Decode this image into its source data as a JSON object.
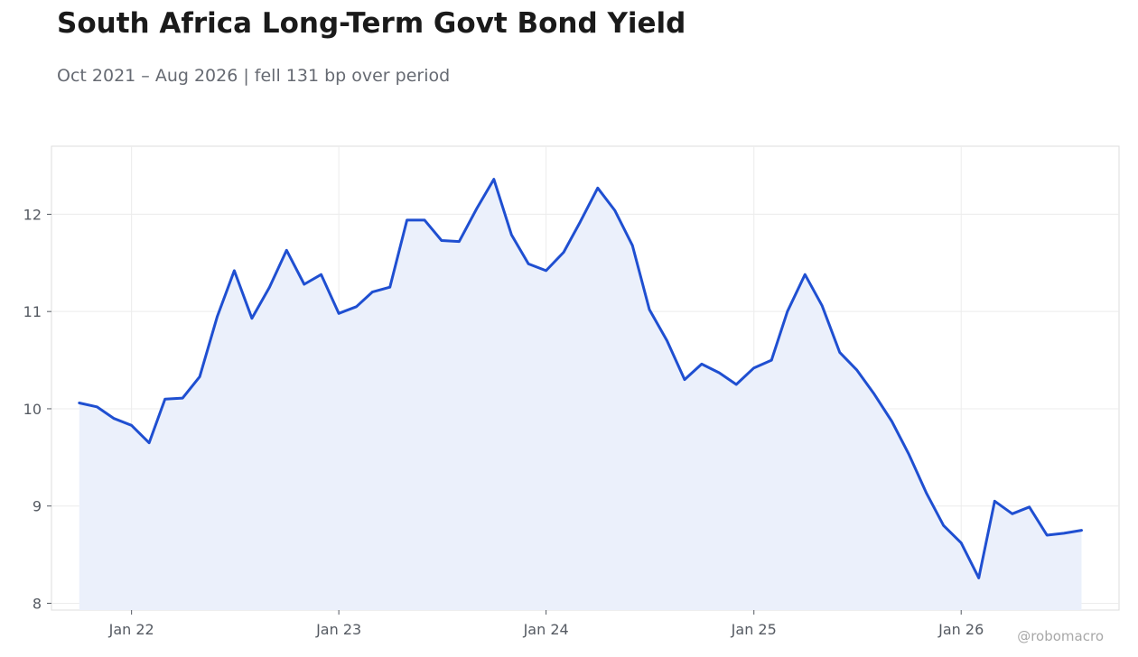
{
  "title": "South Africa Long-Term Govt Bond Yield",
  "subtitle": "Oct 2021 – Aug 2026 | fell 131 bp over period",
  "watermark": "@robomacro",
  "chart_data": {
    "type": "area",
    "title": "South Africa Long-Term Govt Bond Yield",
    "subtitle": "Oct 2021 – Aug 2026 | fell 131 bp over period",
    "xlabel": "",
    "ylabel": "",
    "x": [
      "2021-10",
      "2021-11",
      "2021-12",
      "2022-01",
      "2022-02",
      "2022-03",
      "2022-04",
      "2022-05",
      "2022-06",
      "2022-07",
      "2022-08",
      "2022-09",
      "2022-10",
      "2022-11",
      "2022-12",
      "2023-01",
      "2023-02",
      "2023-03",
      "2023-04",
      "2023-05",
      "2023-06",
      "2023-07",
      "2023-08",
      "2023-09",
      "2023-10",
      "2023-11",
      "2023-12",
      "2024-01",
      "2024-02",
      "2024-03",
      "2024-04",
      "2024-05",
      "2024-06",
      "2024-07",
      "2024-08",
      "2024-09",
      "2024-10",
      "2024-11",
      "2024-12",
      "2025-01",
      "2025-02",
      "2025-03",
      "2025-04",
      "2025-05",
      "2025-06",
      "2025-07",
      "2025-08",
      "2025-09",
      "2025-10",
      "2025-11",
      "2025-12",
      "2026-01",
      "2026-02",
      "2026-03",
      "2026-04",
      "2026-05",
      "2026-06",
      "2026-07",
      "2026-08"
    ],
    "values": [
      10.06,
      10.02,
      9.9,
      9.83,
      9.65,
      10.1,
      10.11,
      10.33,
      10.95,
      11.42,
      10.93,
      11.25,
      11.63,
      11.28,
      11.38,
      10.98,
      11.05,
      11.2,
      11.25,
      11.94,
      11.94,
      11.73,
      11.72,
      12.06,
      12.36,
      11.79,
      11.49,
      11.42,
      11.61,
      11.92,
      12.27,
      12.04,
      11.68,
      11.02,
      10.7,
      10.3,
      10.46,
      10.37,
      10.25,
      10.42,
      10.5,
      11.0,
      11.38,
      11.06,
      10.58,
      10.4,
      10.15,
      9.87,
      9.53,
      9.13,
      8.8,
      8.62,
      8.26,
      9.05,
      8.92,
      8.99,
      8.7,
      8.72,
      8.75
    ],
    "x_ticks": [
      "Jan 22",
      "Jan 23",
      "Jan 24",
      "Jan 25",
      "Jan 26"
    ],
    "y_ticks": [
      "8",
      "9",
      "10",
      "11",
      "12"
    ],
    "ylim": [
      7.93,
      12.7
    ],
    "xlim": [
      "2021-08-13",
      "2026-10-06"
    ],
    "grid": true,
    "legend": "none",
    "colors": {
      "line": "#1f4fd1",
      "fill": "#ebf0fb",
      "grid": "#ececec",
      "frame": "#dddddd"
    }
  }
}
